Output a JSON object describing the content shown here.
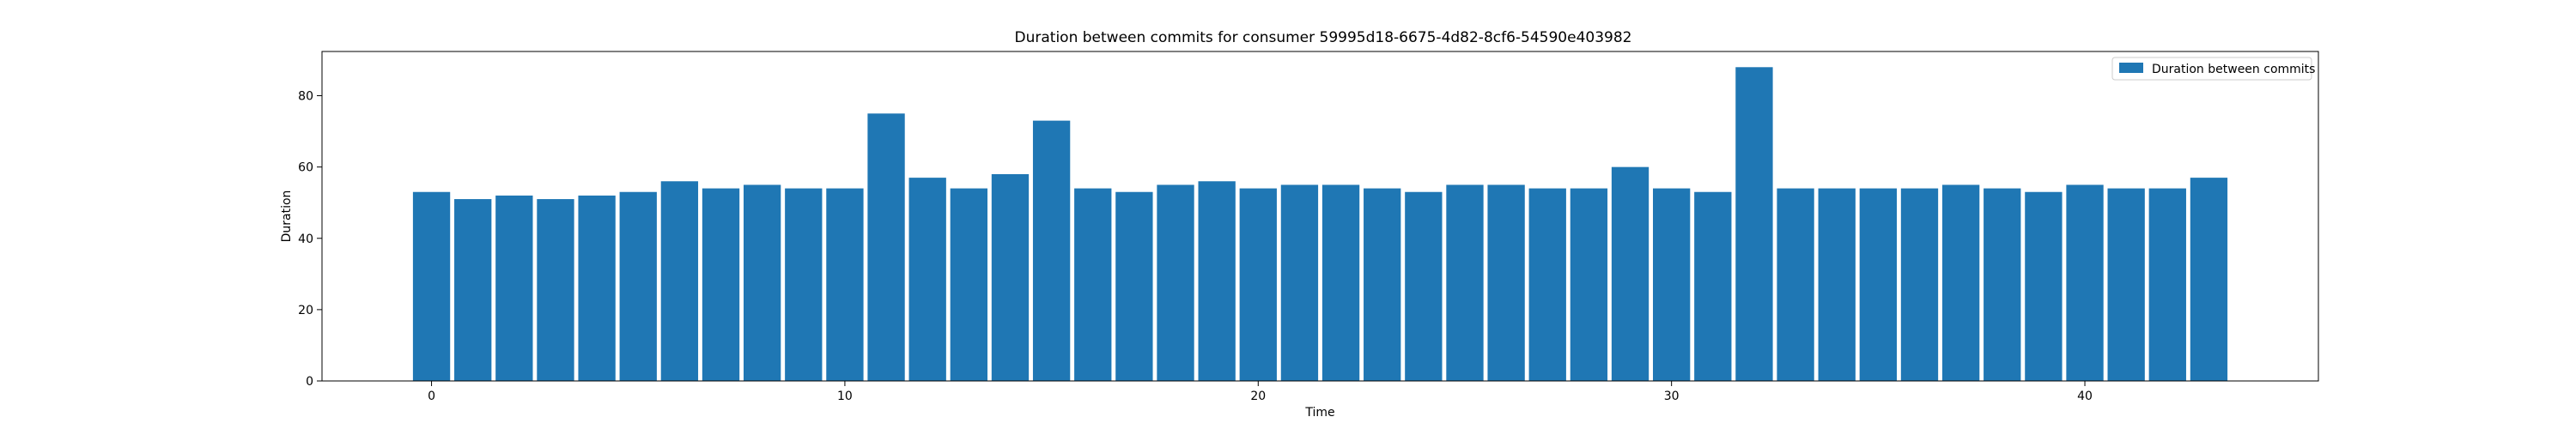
{
  "chart_data": {
    "type": "bar",
    "title": "Duration between commits for consumer 59995d18-6675-4d82-8cf6-54590e403982",
    "xlabel": "Time",
    "ylabel": "Duration",
    "x": [
      0,
      1,
      2,
      3,
      4,
      5,
      6,
      7,
      8,
      9,
      10,
      11,
      12,
      13,
      14,
      15,
      16,
      17,
      18,
      19,
      20,
      21,
      22,
      23,
      24,
      25,
      26,
      27,
      28,
      29,
      30,
      31,
      32,
      33,
      34,
      35,
      36,
      37,
      38,
      39,
      40,
      41,
      42,
      43
    ],
    "series": [
      {
        "name": "Duration between commits",
        "color": "#1f77b4",
        "values": [
          53,
          51,
          52,
          51,
          52,
          53,
          56,
          54,
          55,
          54,
          54,
          75,
          57,
          54,
          58,
          73,
          54,
          53,
          55,
          56,
          54,
          55,
          55,
          54,
          53,
          55,
          55,
          54,
          54,
          60,
          54,
          53,
          88,
          54,
          54,
          54,
          54,
          55,
          54,
          53,
          55,
          54,
          54,
          57
        ]
      }
    ],
    "xlim": [
      -2.65,
      45.65
    ],
    "ylim": [
      0,
      92.4
    ],
    "xticks": [
      0,
      10,
      20,
      30,
      40
    ],
    "yticks": [
      0,
      20,
      40,
      60,
      80
    ],
    "grid": false,
    "legend_position": "top-right"
  }
}
